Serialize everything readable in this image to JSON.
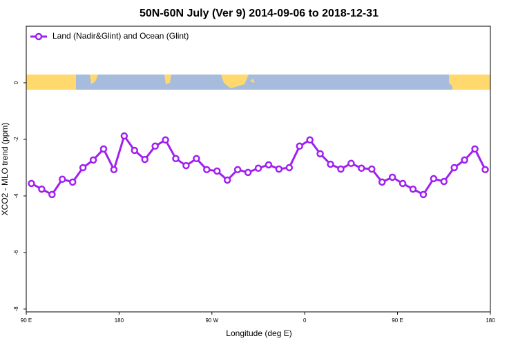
{
  "chart_data": {
    "type": "line",
    "title": "50N-60N July (Ver 9)   2014-09-06 to 2018-12-31",
    "xlabel": "Longitude (deg E)",
    "ylabel": "XCO2 - MLO trend (ppm)",
    "x": [
      95,
      105,
      115,
      125,
      135,
      145,
      155,
      165,
      175,
      185,
      195,
      205,
      215,
      225,
      235,
      245,
      255,
      265,
      275,
      285,
      295,
      305,
      315,
      325,
      335,
      345,
      355,
      365,
      375,
      385,
      395,
      405,
      415,
      425,
      435,
      445,
      455,
      465,
      475,
      485,
      495,
      505,
      515,
      525,
      535
    ],
    "series": [
      {
        "name": "Land (Nadir&Glint) and Ocean (Glint)",
        "color": "#a020f0",
        "values": [
          -3.56,
          -3.76,
          -3.95,
          -3.41,
          -3.51,
          -3.0,
          -2.73,
          -2.34,
          -3.07,
          -1.88,
          -2.39,
          -2.71,
          -2.24,
          -2.02,
          -2.68,
          -2.93,
          -2.68,
          -3.07,
          -3.12,
          -3.44,
          -3.07,
          -3.17,
          -3.02,
          -2.9,
          -3.05,
          -3.0,
          -2.24,
          -2.02,
          -2.51,
          -2.88,
          -3.05,
          -2.85,
          -3.02,
          -3.05,
          -3.51,
          -3.34,
          -3.56,
          -3.76,
          -3.95,
          -3.39,
          -3.49,
          -3.0,
          -2.73,
          -2.34,
          -3.07
        ]
      }
    ],
    "xlim": [
      90,
      540
    ],
    "xticks": [
      {
        "value": 90,
        "label": "90 E"
      },
      {
        "value": 180,
        "label": "180"
      },
      {
        "value": 270,
        "label": "90 W"
      },
      {
        "value": 360,
        "label": "0"
      },
      {
        "value": 450,
        "label": "90 E"
      },
      {
        "value": 540,
        "label": "180"
      }
    ],
    "ylim": [
      -8.1,
      2
    ],
    "yticks": [
      0,
      -2,
      -4,
      -6,
      -8
    ],
    "legend": "top-left"
  }
}
